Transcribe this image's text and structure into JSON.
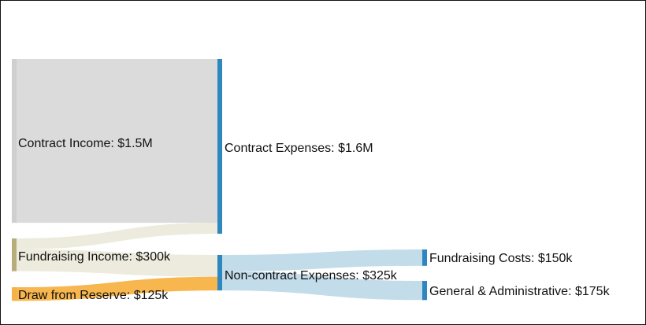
{
  "diagram": {
    "type": "sankey",
    "nodes": [
      {
        "id": "contract_income",
        "label": "Contract Income: $1.5M",
        "value": 1500,
        "color": "#cfcfcf"
      },
      {
        "id": "fundraising_income",
        "label": "Fundraising Income: $300k",
        "value": 300,
        "color": "#b7ad7a"
      },
      {
        "id": "draw_reserve",
        "label": "Draw from Reserve: $125k",
        "value": 125,
        "color": "#f4b247"
      },
      {
        "id": "contract_expenses",
        "label": "Contract Expenses: $1.6M",
        "value": 1600,
        "color": "#2f87bf"
      },
      {
        "id": "noncontract_expenses",
        "label": "Non-contract Expenses: $325k",
        "value": 325,
        "color": "#2f87bf"
      },
      {
        "id": "fundraising_costs",
        "label": "Fundraising Costs: $150k",
        "value": 150,
        "color": "#2f87bf"
      },
      {
        "id": "general_admin",
        "label": "General & Administrative: $175k",
        "value": 175,
        "color": "#2f87bf"
      }
    ],
    "links": [
      {
        "source": "contract_income",
        "target": "contract_expenses",
        "value": 1500,
        "color": "#dcdbdb"
      },
      {
        "source": "fundraising_income",
        "target": "contract_expenses",
        "value": 100,
        "color": "#ecebdd"
      },
      {
        "source": "fundraising_income",
        "target": "noncontract_expenses",
        "value": 200,
        "color": "#ecebdd"
      },
      {
        "source": "draw_reserve",
        "target": "noncontract_expenses",
        "value": 125,
        "color": "#f7b64e"
      },
      {
        "source": "noncontract_expenses",
        "target": "fundraising_costs",
        "value": 150,
        "color": "#c3dcea"
      },
      {
        "source": "noncontract_expenses",
        "target": "general_admin",
        "value": 175,
        "color": "#c3dcea"
      }
    ]
  }
}
